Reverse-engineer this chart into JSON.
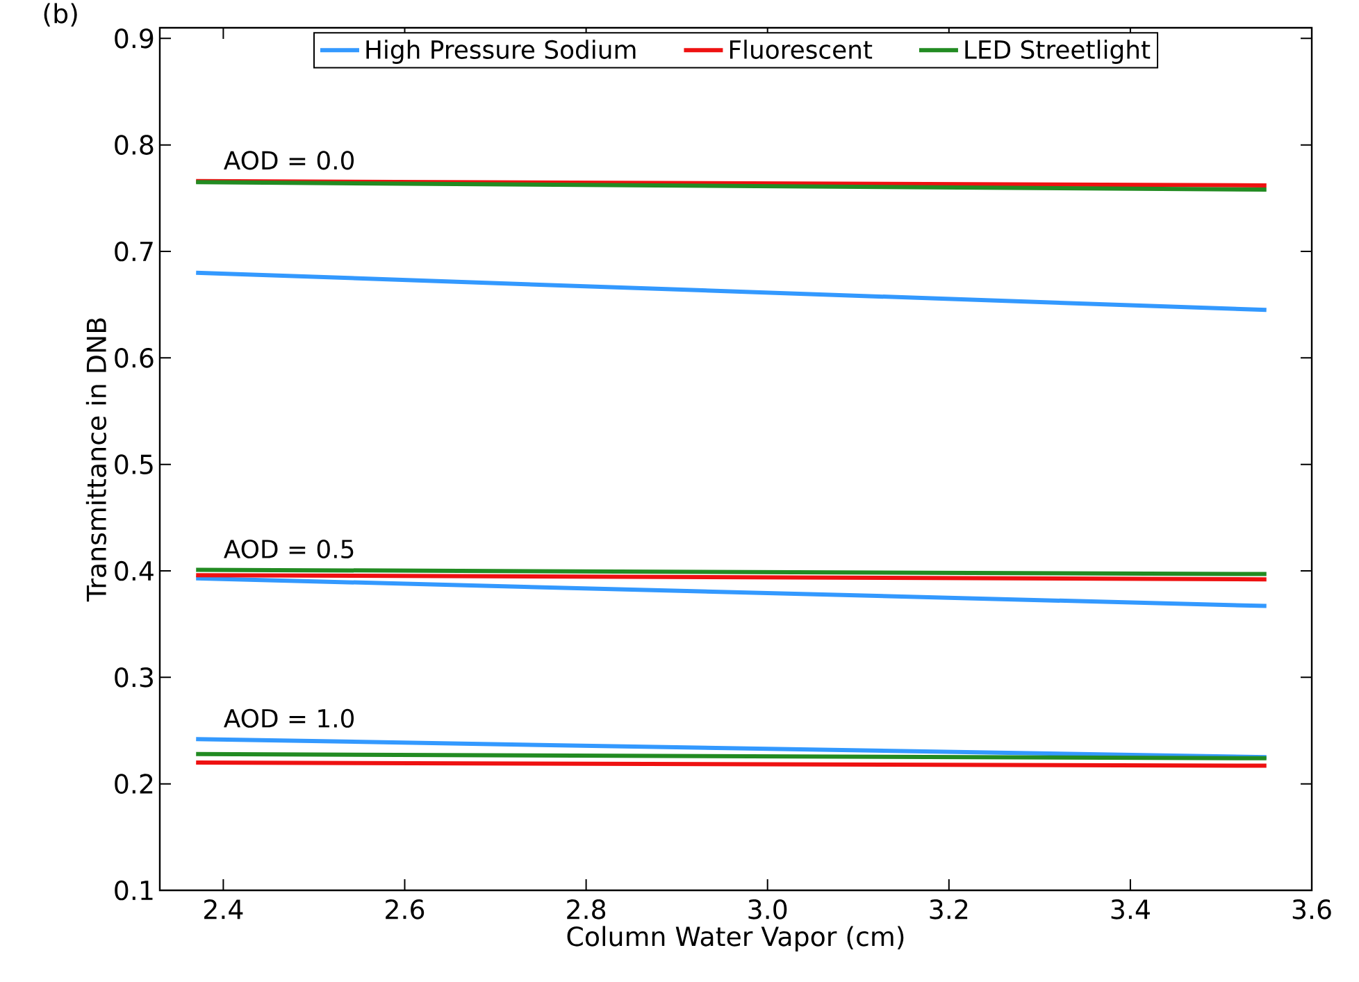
{
  "chart_data": {
    "type": "line",
    "title": "(b)",
    "xlabel": "Column Water Vapor (cm)",
    "ylabel": "Transmittance in DNB",
    "xlim": [
      2.33,
      3.6
    ],
    "xticks": [
      2.4,
      2.6,
      2.8,
      {
        "value": 3.0,
        "label": "3.0"
      },
      3.2,
      3.4,
      3.6
    ],
    "ylim": [
      0.1,
      0.91
    ],
    "yticks": [
      0.1,
      0.2,
      0.3,
      0.4,
      0.5,
      0.6,
      0.7,
      0.8,
      0.9
    ],
    "x": [
      2.37,
      3.55
    ],
    "grid": false,
    "legend": "top",
    "marker": "none",
    "line_style": "solid",
    "series": [
      {
        "name": "High Pressure Sodium",
        "color": "#3399ff",
        "values": [
          0.68,
          0.645
        ]
      },
      {
        "name": "Fluorescent",
        "color": "#ee1111",
        "values": [
          0.766,
          0.762
        ]
      },
      {
        "name": "LED Streetlight",
        "color": "#228b22",
        "values": [
          0.765,
          0.758
        ]
      },
      {
        "color": "#3399ff",
        "values": [
          0.393,
          0.367
        ]
      },
      {
        "color": "#ee1111",
        "values": [
          0.396,
          0.392
        ]
      },
      {
        "color": "#228b22",
        "values": [
          0.401,
          0.397
        ]
      },
      {
        "color": "#3399ff",
        "values": [
          0.242,
          0.225
        ]
      },
      {
        "color": "#ee1111",
        "values": [
          0.22,
          0.217
        ]
      },
      {
        "color": "#228b22",
        "values": [
          0.228,
          0.224
        ]
      }
    ],
    "annotations": [
      "AOD = 0.0",
      "AOD = 0.5",
      "AOD = 1.0"
    ]
  }
}
